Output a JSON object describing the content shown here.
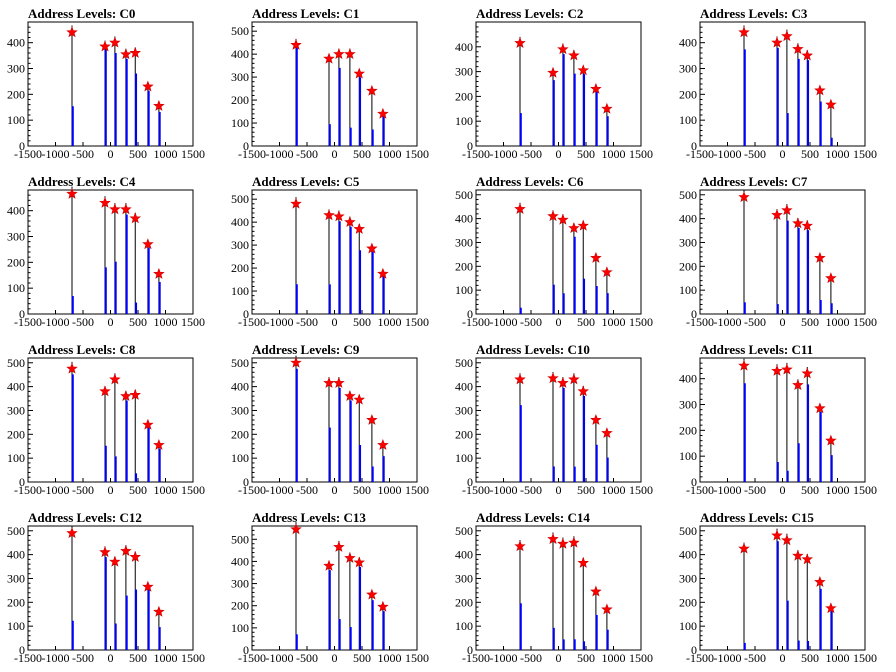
{
  "chart_data": [
    {
      "type": "bar",
      "title": "Address Levels: C0",
      "xlim": [
        -1500,
        1500
      ],
      "ylim": [
        0,
        480
      ],
      "yticks": [
        0,
        100,
        200,
        300,
        400
      ],
      "xticks": [
        "-1500",
        "-1000",
        "-500",
        "0",
        "500",
        "1000",
        "1500"
      ],
      "peaks": [
        {
          "x": -700,
          "y": 440,
          "f": 0.35
        },
        {
          "x": -100,
          "y": 385,
          "f": 0.97
        },
        {
          "x": 80,
          "y": 400,
          "f": 0.9
        },
        {
          "x": 280,
          "y": 355,
          "f": 0.95
        },
        {
          "x": 450,
          "y": 360,
          "f": 0.78
        },
        {
          "x": 680,
          "y": 230,
          "f": 0.93
        },
        {
          "x": 880,
          "y": 155,
          "f": 0.85
        }
      ]
    },
    {
      "type": "bar",
      "title": "Address Levels: C1",
      "xlim": [
        -1500,
        1500
      ],
      "ylim": [
        0,
        540
      ],
      "yticks": [
        0,
        100,
        200,
        300,
        400,
        500
      ],
      "xticks": [
        "-1500",
        "-1000",
        "-500",
        "0",
        "500",
        "1000",
        "1500"
      ],
      "peaks": [
        {
          "x": -700,
          "y": 440,
          "f": 0.97
        },
        {
          "x": -100,
          "y": 380,
          "f": 0.25
        },
        {
          "x": 80,
          "y": 400,
          "f": 0.85
        },
        {
          "x": 280,
          "y": 400,
          "f": 0.2
        },
        {
          "x": 450,
          "y": 315,
          "f": 0.95
        },
        {
          "x": 680,
          "y": 240,
          "f": 0.3
        },
        {
          "x": 880,
          "y": 140,
          "f": 0.95
        }
      ]
    },
    {
      "type": "bar",
      "title": "Address Levels: C2",
      "xlim": [
        -1500,
        1500
      ],
      "ylim": [
        0,
        500
      ],
      "yticks": [
        0,
        100,
        200,
        300,
        400
      ],
      "xticks": [
        "-1500",
        "-1000",
        "-500",
        "0",
        "500",
        "1000",
        "1500"
      ],
      "peaks": [
        {
          "x": -700,
          "y": 415,
          "f": 0.32
        },
        {
          "x": -100,
          "y": 295,
          "f": 0.9
        },
        {
          "x": 80,
          "y": 390,
          "f": 0.95
        },
        {
          "x": 280,
          "y": 365,
          "f": 0.8
        },
        {
          "x": 450,
          "y": 305,
          "f": 0.95
        },
        {
          "x": 680,
          "y": 230,
          "f": 0.95
        },
        {
          "x": 880,
          "y": 150,
          "f": 0.8
        }
      ]
    },
    {
      "type": "bar",
      "title": "Address Levels: C3",
      "xlim": [
        -1500,
        1500
      ],
      "ylim": [
        0,
        480
      ],
      "yticks": [
        0,
        100,
        200,
        300,
        400
      ],
      "xticks": [
        "-1500",
        "-1000",
        "-500",
        "0",
        "500",
        "1000",
        "1500"
      ],
      "peaks": [
        {
          "x": -700,
          "y": 440,
          "f": 0.85
        },
        {
          "x": -100,
          "y": 400,
          "f": 0.95
        },
        {
          "x": 80,
          "y": 425,
          "f": 0.3
        },
        {
          "x": 280,
          "y": 375,
          "f": 0.9
        },
        {
          "x": 450,
          "y": 350,
          "f": 0.95
        },
        {
          "x": 680,
          "y": 215,
          "f": 0.8
        },
        {
          "x": 880,
          "y": 160,
          "f": 0.2
        }
      ]
    },
    {
      "type": "bar",
      "title": "Address Levels: C4",
      "xlim": [
        -1500,
        1500
      ],
      "ylim": [
        0,
        480
      ],
      "yticks": [
        0,
        100,
        200,
        300,
        400
      ],
      "xticks": [
        "-1500",
        "-1000",
        "-500",
        "0",
        "500",
        "1000",
        "1500"
      ],
      "peaks": [
        {
          "x": -700,
          "y": 465,
          "f": 0.15
        },
        {
          "x": -100,
          "y": 430,
          "f": 0.42
        },
        {
          "x": 80,
          "y": 405,
          "f": 0.5
        },
        {
          "x": 280,
          "y": 405,
          "f": 0.95
        },
        {
          "x": 450,
          "y": 370,
          "f": 0.12
        },
        {
          "x": 680,
          "y": 270,
          "f": 0.95
        },
        {
          "x": 880,
          "y": 155,
          "f": 0.8
        }
      ]
    },
    {
      "type": "bar",
      "title": "Address Levels: C5",
      "xlim": [
        -1500,
        1500
      ],
      "ylim": [
        0,
        540
      ],
      "yticks": [
        0,
        100,
        200,
        300,
        400,
        500
      ],
      "xticks": [
        "-1500",
        "-1000",
        "-500",
        "0",
        "500",
        "1000",
        "1500"
      ],
      "peaks": [
        {
          "x": -700,
          "y": 480,
          "f": 0.27
        },
        {
          "x": -100,
          "y": 430,
          "f": 0.3
        },
        {
          "x": 80,
          "y": 425,
          "f": 0.95
        },
        {
          "x": 280,
          "y": 400,
          "f": 0.95
        },
        {
          "x": 450,
          "y": 370,
          "f": 0.75
        },
        {
          "x": 680,
          "y": 285,
          "f": 0.95
        },
        {
          "x": 880,
          "y": 175,
          "f": 0.95
        }
      ]
    },
    {
      "type": "bar",
      "title": "Address Levels: C6",
      "xlim": [
        -1500,
        1500
      ],
      "ylim": [
        0,
        520
      ],
      "yticks": [
        0,
        100,
        200,
        300,
        400,
        500
      ],
      "xticks": [
        "-1500",
        "-1000",
        "-500",
        "0",
        "500",
        "1000",
        "1500"
      ],
      "peaks": [
        {
          "x": -700,
          "y": 440,
          "f": 0.06
        },
        {
          "x": -100,
          "y": 410,
          "f": 0.3
        },
        {
          "x": 80,
          "y": 395,
          "f": 0.22
        },
        {
          "x": 280,
          "y": 360,
          "f": 0.9
        },
        {
          "x": 450,
          "y": 370,
          "f": 0.4
        },
        {
          "x": 680,
          "y": 235,
          "f": 0.5
        },
        {
          "x": 880,
          "y": 175,
          "f": 0.5
        }
      ]
    },
    {
      "type": "bar",
      "title": "Address Levels: C7",
      "xlim": [
        -1500,
        1500
      ],
      "ylim": [
        0,
        520
      ],
      "yticks": [
        0,
        100,
        200,
        300,
        400,
        500
      ],
      "xticks": [
        "-1500",
        "-1000",
        "-500",
        "0",
        "500",
        "1000",
        "1500"
      ],
      "peaks": [
        {
          "x": -700,
          "y": 490,
          "f": 0.1
        },
        {
          "x": -100,
          "y": 415,
          "f": 0.1
        },
        {
          "x": 80,
          "y": 435,
          "f": 0.9
        },
        {
          "x": 280,
          "y": 380,
          "f": 0.95
        },
        {
          "x": 450,
          "y": 370,
          "f": 0.95
        },
        {
          "x": 680,
          "y": 235,
          "f": 0.25
        },
        {
          "x": 880,
          "y": 150,
          "f": 0.3
        }
      ]
    },
    {
      "type": "bar",
      "title": "Address Levels: C8",
      "xlim": [
        -1500,
        1500
      ],
      "ylim": [
        0,
        520
      ],
      "yticks": [
        0,
        100,
        200,
        300,
        400,
        500
      ],
      "xticks": [
        "-1500",
        "-1000",
        "-500",
        "0",
        "500",
        "1000",
        "1500"
      ],
      "peaks": [
        {
          "x": -700,
          "y": 475,
          "f": 0.95
        },
        {
          "x": -100,
          "y": 380,
          "f": 0.4
        },
        {
          "x": 80,
          "y": 430,
          "f": 0.25
        },
        {
          "x": 280,
          "y": 360,
          "f": 0.95
        },
        {
          "x": 450,
          "y": 365,
          "f": 0.1
        },
        {
          "x": 680,
          "y": 240,
          "f": 0.95
        },
        {
          "x": 880,
          "y": 155,
          "f": 0.9
        }
      ]
    },
    {
      "type": "bar",
      "title": "Address Levels: C9",
      "xlim": [
        -1500,
        1500
      ],
      "ylim": [
        0,
        520
      ],
      "yticks": [
        0,
        100,
        200,
        300,
        400,
        500
      ],
      "xticks": [
        "-1500",
        "-1000",
        "-500",
        "0",
        "500",
        "1000",
        "1500"
      ],
      "peaks": [
        {
          "x": -700,
          "y": 500,
          "f": 0.95
        },
        {
          "x": -100,
          "y": 415,
          "f": 0.55
        },
        {
          "x": 80,
          "y": 415,
          "f": 0.95
        },
        {
          "x": 280,
          "y": 360,
          "f": 0.95
        },
        {
          "x": 450,
          "y": 345,
          "f": 0.45
        },
        {
          "x": 680,
          "y": 260,
          "f": 0.25
        },
        {
          "x": 880,
          "y": 155,
          "f": 0.7
        }
      ]
    },
    {
      "type": "bar",
      "title": "Address Levels: C10",
      "xlim": [
        -1500,
        1500
      ],
      "ylim": [
        0,
        520
      ],
      "yticks": [
        0,
        100,
        200,
        300,
        400,
        500
      ],
      "xticks": [
        "-1500",
        "-1000",
        "-500",
        "0",
        "500",
        "1000",
        "1500"
      ],
      "peaks": [
        {
          "x": -700,
          "y": 430,
          "f": 0.75
        },
        {
          "x": -100,
          "y": 435,
          "f": 0.15
        },
        {
          "x": 80,
          "y": 415,
          "f": 0.95
        },
        {
          "x": 280,
          "y": 430,
          "f": 0.15
        },
        {
          "x": 450,
          "y": 380,
          "f": 0.95
        },
        {
          "x": 680,
          "y": 260,
          "f": 0.6
        },
        {
          "x": 880,
          "y": 205,
          "f": 0.5
        }
      ]
    },
    {
      "type": "bar",
      "title": "Address Levels: C11",
      "xlim": [
        -1500,
        1500
      ],
      "ylim": [
        0,
        480
      ],
      "yticks": [
        0,
        100,
        200,
        300,
        400
      ],
      "xticks": [
        "-1500",
        "-1000",
        "-500",
        "0",
        "500",
        "1000",
        "1500"
      ],
      "peaks": [
        {
          "x": -700,
          "y": 450,
          "f": 0.85
        },
        {
          "x": -100,
          "y": 430,
          "f": 0.18
        },
        {
          "x": 80,
          "y": 435,
          "f": 0.1
        },
        {
          "x": 280,
          "y": 375,
          "f": 0.4
        },
        {
          "x": 450,
          "y": 420,
          "f": 0.9
        },
        {
          "x": 680,
          "y": 285,
          "f": 0.95
        },
        {
          "x": 880,
          "y": 160,
          "f": 0.65
        }
      ]
    },
    {
      "type": "bar",
      "title": "Address Levels: C12",
      "xlim": [
        -1500,
        1500
      ],
      "ylim": [
        0,
        520
      ],
      "yticks": [
        0,
        100,
        200,
        300,
        400,
        500
      ],
      "xticks": [
        "-1500",
        "-1000",
        "-500",
        "0",
        "500",
        "1000",
        "1500"
      ],
      "peaks": [
        {
          "x": -700,
          "y": 490,
          "f": 0.25
        },
        {
          "x": -100,
          "y": 410,
          "f": 0.95
        },
        {
          "x": 80,
          "y": 370,
          "f": 0.3
        },
        {
          "x": 280,
          "y": 415,
          "f": 0.55
        },
        {
          "x": 450,
          "y": 390,
          "f": 0.65
        },
        {
          "x": 680,
          "y": 265,
          "f": 0.95
        },
        {
          "x": 880,
          "y": 160,
          "f": 0.6
        }
      ]
    },
    {
      "type": "bar",
      "title": "Address Levels: C13",
      "xlim": [
        -1500,
        1500
      ],
      "ylim": [
        0,
        560
      ],
      "yticks": [
        0,
        100,
        200,
        300,
        400,
        500
      ],
      "xticks": [
        "-1500",
        "-1000",
        "-500",
        "0",
        "500",
        "1000",
        "1500"
      ],
      "peaks": [
        {
          "x": -700,
          "y": 545,
          "f": 0.13
        },
        {
          "x": -100,
          "y": 380,
          "f": 0.95
        },
        {
          "x": 80,
          "y": 465,
          "f": 0.3
        },
        {
          "x": 280,
          "y": 415,
          "f": 0.25
        },
        {
          "x": 450,
          "y": 395,
          "f": 0.95
        },
        {
          "x": 680,
          "y": 250,
          "f": 0.9
        },
        {
          "x": 880,
          "y": 195,
          "f": 0.9
        }
      ]
    },
    {
      "type": "bar",
      "title": "Address Levels: C14",
      "xlim": [
        -1500,
        1500
      ],
      "ylim": [
        0,
        520
      ],
      "yticks": [
        0,
        100,
        200,
        300,
        400,
        500
      ],
      "xticks": [
        "-1500",
        "-1000",
        "-500",
        "0",
        "500",
        "1000",
        "1500"
      ],
      "peaks": [
        {
          "x": -700,
          "y": 435,
          "f": 0.45
        },
        {
          "x": -100,
          "y": 465,
          "f": 0.2
        },
        {
          "x": 80,
          "y": 445,
          "f": 0.1
        },
        {
          "x": 280,
          "y": 450,
          "f": 0.1
        },
        {
          "x": 450,
          "y": 365,
          "f": 0.1
        },
        {
          "x": 680,
          "y": 245,
          "f": 0.6
        },
        {
          "x": 880,
          "y": 170,
          "f": 0.5
        }
      ]
    },
    {
      "type": "bar",
      "title": "Address Levels: C15",
      "xlim": [
        -1500,
        1500
      ],
      "ylim": [
        0,
        520
      ],
      "yticks": [
        0,
        100,
        200,
        300,
        400,
        500
      ],
      "xticks": [
        "-1500",
        "-1000",
        "-500",
        "0",
        "500",
        "1000",
        "1500"
      ],
      "peaks": [
        {
          "x": -700,
          "y": 425,
          "f": 0.07
        },
        {
          "x": -100,
          "y": 480,
          "f": 0.95
        },
        {
          "x": 80,
          "y": 460,
          "f": 0.45
        },
        {
          "x": 280,
          "y": 395,
          "f": 0.1
        },
        {
          "x": 450,
          "y": 380,
          "f": 0.1
        },
        {
          "x": 680,
          "y": 285,
          "f": 0.9
        },
        {
          "x": 880,
          "y": 175,
          "f": 0.95
        }
      ]
    }
  ]
}
